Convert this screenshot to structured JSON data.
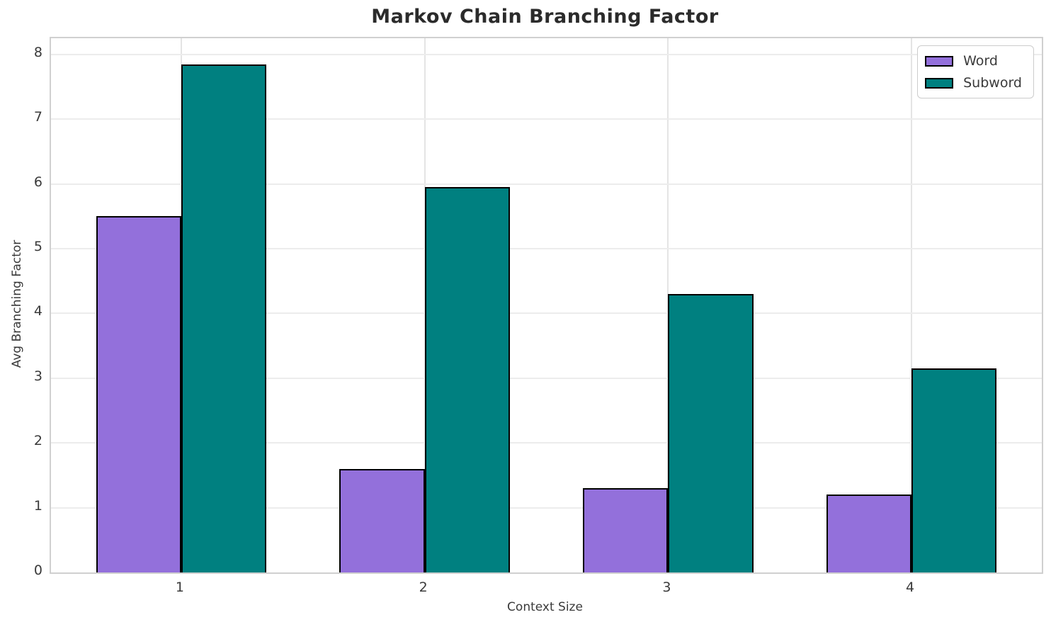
{
  "chart_data": {
    "type": "bar",
    "title": "Markov Chain Branching Factor",
    "xlabel": "Context Size",
    "ylabel": "Avg Branching Factor",
    "categories": [
      "1",
      "2",
      "3",
      "4"
    ],
    "series": [
      {
        "name": "Word",
        "color": "#9370DB",
        "values": [
          5.5,
          1.6,
          1.3,
          1.2
        ]
      },
      {
        "name": "Subword",
        "color": "#008080",
        "values": [
          7.85,
          5.95,
          4.3,
          3.15
        ]
      }
    ],
    "bar_width": 0.35,
    "bar_edge_color": "#000000",
    "ylim": [
      0,
      8.25
    ],
    "yticks": [
      0,
      1,
      2,
      3,
      4,
      5,
      6,
      7,
      8
    ],
    "grid": true,
    "legend_position": "upper right"
  },
  "colors": {
    "grid": "#ececec",
    "spine": "#d0d0d0",
    "text": "#3a3a3a",
    "title": "#2b2b2b",
    "legend_border": "#cccccc",
    "legend_background": "#ffffff"
  }
}
